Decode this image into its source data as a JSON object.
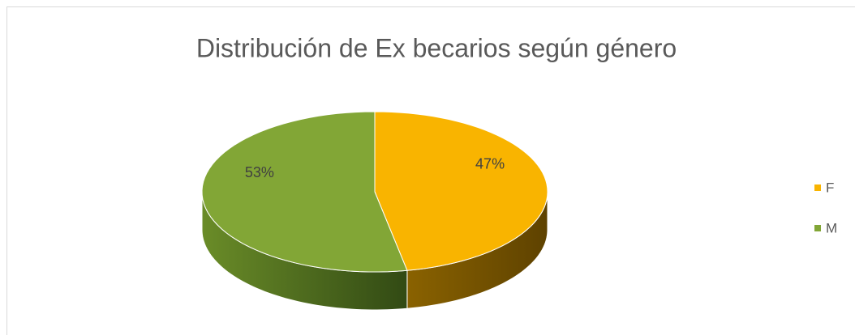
{
  "chart_data": {
    "type": "pie3d",
    "title": "Distribución de Ex becarios según género",
    "categories": [
      "F",
      "M"
    ],
    "values": [
      47,
      53
    ],
    "value_labels": [
      "47%",
      "53%"
    ],
    "colors": [
      "#F9B400",
      "#82A636"
    ],
    "legend": "right"
  }
}
